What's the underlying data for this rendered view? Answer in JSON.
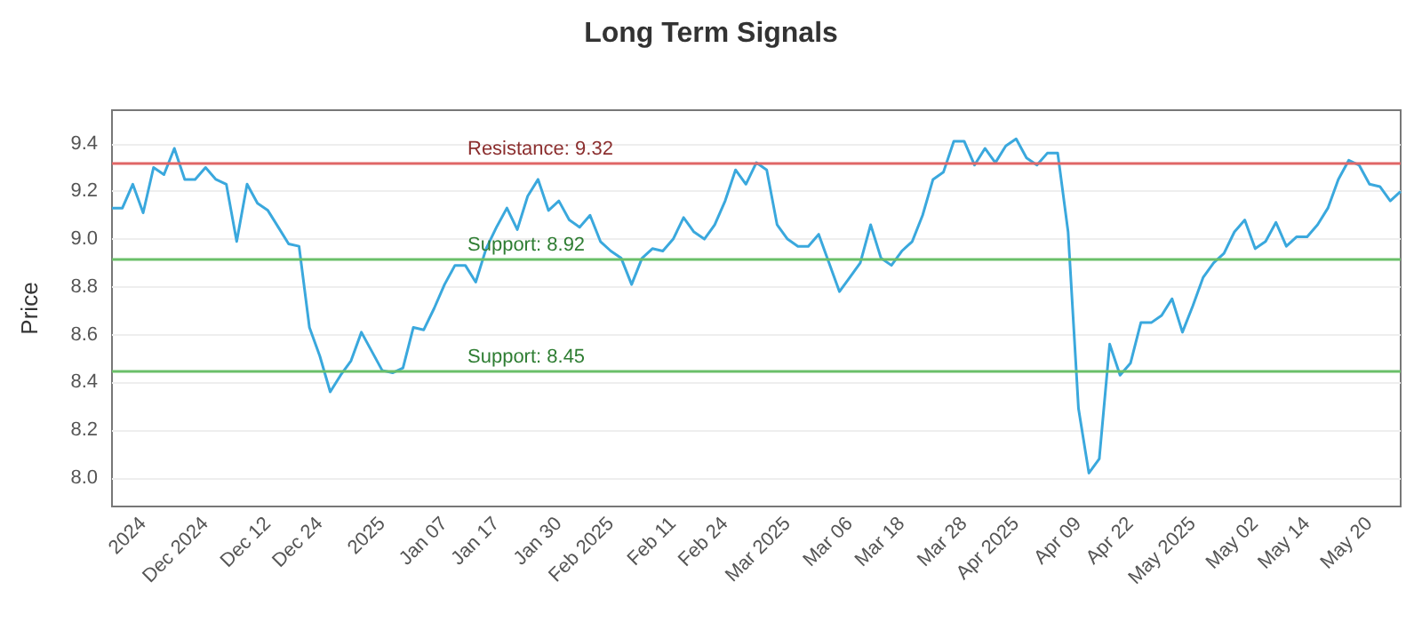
{
  "chart_data": {
    "type": "line",
    "title": "Long Term Signals",
    "ylabel": "Price",
    "categories": [
      null,
      null,
      null,
      "2024",
      null,
      null,
      null,
      null,
      null,
      "Dec 2024",
      null,
      null,
      null,
      null,
      null,
      "Dec 12",
      null,
      null,
      null,
      null,
      "Dec 24",
      null,
      null,
      null,
      null,
      null,
      "2025",
      null,
      null,
      null,
      null,
      null,
      "Jan 07",
      null,
      null,
      null,
      null,
      "Jan 17",
      null,
      null,
      null,
      null,
      null,
      "Jan 30",
      null,
      null,
      null,
      null,
      "Feb 2025",
      null,
      null,
      null,
      null,
      null,
      "Feb 11",
      null,
      null,
      null,
      null,
      "Feb 24",
      null,
      null,
      null,
      null,
      null,
      "Mar 2025",
      null,
      null,
      null,
      null,
      null,
      "Mar 06",
      null,
      null,
      null,
      null,
      "Mar 18",
      null,
      null,
      null,
      null,
      null,
      "Mar 28",
      null,
      null,
      null,
      null,
      "Apr 2025",
      null,
      null,
      null,
      null,
      null,
      "Apr 09",
      null,
      null,
      null,
      null,
      "Apr 22",
      null,
      null,
      null,
      null,
      null,
      "May 2025",
      null,
      null,
      null,
      null,
      null,
      "May 02",
      null,
      null,
      null,
      null,
      "May 14",
      null,
      null,
      null,
      null,
      null,
      "May 20",
      null,
      null,
      null
    ],
    "series": [
      {
        "color": "#3aa8dd",
        "values": [
          9.13,
          9.13,
          9.23,
          9.11,
          9.3,
          9.27,
          9.38,
          9.25,
          9.25,
          9.3,
          9.25,
          9.23,
          8.99,
          9.23,
          9.15,
          9.12,
          9.05,
          8.98,
          8.97,
          8.63,
          8.51,
          8.36,
          8.43,
          8.49,
          8.61,
          8.53,
          8.45,
          8.44,
          8.46,
          8.63,
          8.62,
          8.71,
          8.81,
          8.89,
          8.89,
          8.82,
          8.96,
          9.05,
          9.13,
          9.04,
          9.18,
          9.25,
          9.12,
          9.16,
          9.08,
          9.05,
          9.1,
          8.99,
          8.95,
          8.92,
          8.81,
          8.92,
          8.96,
          8.95,
          9.0,
          9.09,
          9.03,
          9.0,
          9.06,
          9.16,
          9.29,
          9.23,
          9.32,
          9.29,
          9.06,
          9.0,
          8.97,
          8.97,
          9.02,
          8.9,
          8.78,
          8.84,
          8.9,
          9.06,
          8.92,
          8.89,
          8.95,
          8.99,
          9.1,
          9.25,
          9.28,
          9.41,
          9.41,
          9.31,
          9.38,
          9.32,
          9.39,
          9.42,
          9.34,
          9.31,
          9.36,
          9.36,
          9.03,
          8.29,
          8.02,
          8.08,
          8.56,
          8.43,
          8.48,
          8.65,
          8.65,
          8.68,
          8.75,
          8.61,
          8.72,
          8.84,
          8.9,
          8.94,
          9.03,
          9.08,
          8.96,
          8.99,
          9.07,
          8.97,
          9.01,
          9.01,
          9.06,
          9.13,
          9.25,
          9.33,
          9.31,
          9.23,
          9.22,
          9.16,
          9.2
        ]
      }
    ],
    "ylim": [
      7.88,
      9.54
    ],
    "yticks": [
      {
        "value": 8,
        "label": "8.0"
      },
      8.2,
      8.4,
      8.6,
      8.8,
      {
        "value": 9,
        "label": "9.0"
      },
      9.2,
      9.4
    ],
    "grid": "y",
    "marker": "none",
    "line_style": "solid",
    "ref_lines": [
      {
        "axis": "y",
        "value": 9.32,
        "label": "Resistance: 9.32",
        "color": "#e06666"
      },
      {
        "axis": "y",
        "value": 8.92,
        "label": "Support: 8.92",
        "color": "#6abf69"
      },
      {
        "axis": "y",
        "value": 8.45,
        "label": "Support: 8.45",
        "color": "#6abf69"
      }
    ]
  }
}
